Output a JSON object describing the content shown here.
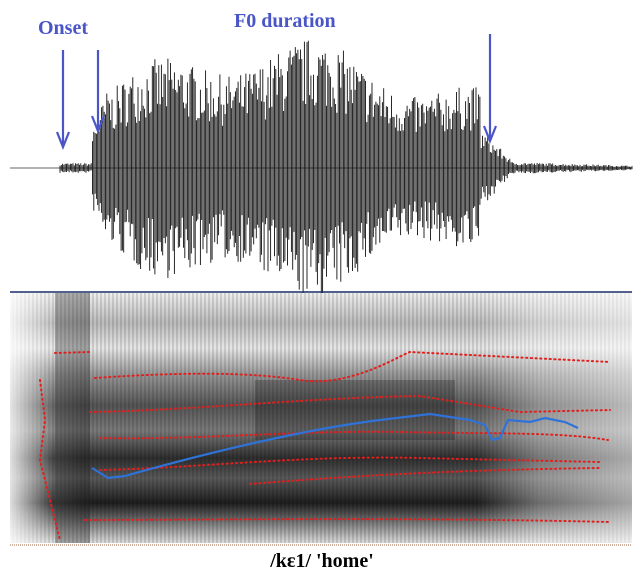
{
  "labels": {
    "onset": "Onset",
    "f0_duration": "F0 duration"
  },
  "caption": "/kɛ1/ 'home'"
}
